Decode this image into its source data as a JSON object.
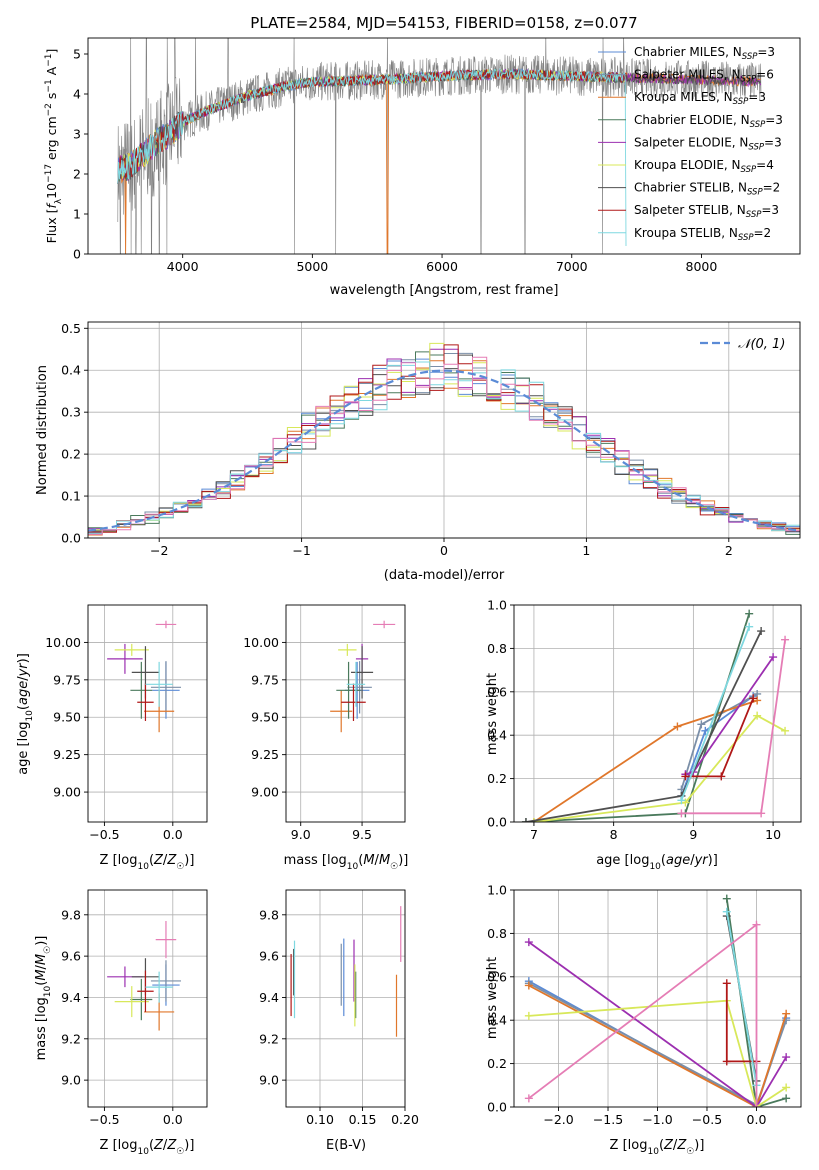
{
  "figure": {
    "title": "PLATE=2584, MJD=54153, FIBERID=0158, z=0.077"
  },
  "colors": {
    "chabrier_miles": "#5b8bd6",
    "salpeter_miles": "#7b8fa8",
    "kroupa_miles": "#e0772b",
    "chabrier_elodie": "#4a7a5c",
    "salpeter_elodie": "#9c2fb0",
    "kroupa_elodie": "#d8e85a",
    "chabrier_stelib": "#505050",
    "salpeter_stelib": "#b01818",
    "kroupa_stelib": "#7fd8e0",
    "data": "#808080",
    "gaussian": "#5b8bd6",
    "pink": "#e57db5"
  },
  "chart_data": [
    {
      "id": "spectrum",
      "type": "line",
      "title": "PLATE=2584, MJD=54153, FIBERID=0158, z=0.077",
      "xlabel": "wavelength [Angstrom, rest frame]",
      "ylabel": "Flux [f_λ10^-17 erg cm^-2 s^-1 A^-1]",
      "xlim": [
        3270,
        8760
      ],
      "ylim": [
        0,
        5.4
      ],
      "xticks": [
        4000,
        5000,
        6000,
        7000,
        8000
      ],
      "yticks": [
        0,
        1,
        2,
        3,
        4,
        5
      ],
      "grid": false,
      "legend_position": "right",
      "legend": [
        {
          "name": "Chabrier MILES, N",
          "sub": "SSP",
          "eq": "=3",
          "color_key": "chabrier_miles"
        },
        {
          "name": "Salpeter MILES, N",
          "sub": "SSP",
          "eq": "=6",
          "color_key": "salpeter_miles"
        },
        {
          "name": "Kroupa MILES, N",
          "sub": "SSP",
          "eq": "=3",
          "color_key": "kroupa_miles"
        },
        {
          "name": "Chabrier ELODIE, N",
          "sub": "SSP",
          "eq": "=3",
          "color_key": "chabrier_elodie"
        },
        {
          "name": "Salpeter ELODIE, N",
          "sub": "SSP",
          "eq": "=3",
          "color_key": "salpeter_elodie"
        },
        {
          "name": "Kroupa ELODIE, N",
          "sub": "SSP",
          "eq": "=4",
          "color_key": "kroupa_elodie"
        },
        {
          "name": "Chabrier STELIB, N",
          "sub": "SSP",
          "eq": "=2",
          "color_key": "chabrier_stelib"
        },
        {
          "name": "Salpeter STELIB, N",
          "sub": "SSP",
          "eq": "=3",
          "color_key": "salpeter_stelib"
        },
        {
          "name": "Kroupa STELIB, N",
          "sub": "SSP",
          "eq": "=2",
          "color_key": "kroupa_stelib"
        }
      ],
      "continuum": [
        [
          3500,
          2.1
        ],
        [
          3600,
          2.2
        ],
        [
          3700,
          2.5
        ],
        [
          3800,
          2.8
        ],
        [
          3900,
          3.0
        ],
        [
          4000,
          3.3
        ],
        [
          4200,
          3.6
        ],
        [
          4500,
          3.95
        ],
        [
          4800,
          4.2
        ],
        [
          5000,
          4.3
        ],
        [
          5500,
          4.35
        ],
        [
          6000,
          4.45
        ],
        [
          6500,
          4.5
        ],
        [
          7000,
          4.45
        ],
        [
          7500,
          4.4
        ],
        [
          8000,
          4.35
        ],
        [
          8500,
          4.3
        ]
      ],
      "data_spikes": [
        3520,
        3560,
        3600,
        3640,
        3680,
        3720,
        3760,
        3820,
        3880,
        3940,
        4100,
        4350,
        4860,
        5180,
        5580,
        6300,
        6640,
        6800,
        7240,
        7400
      ]
    },
    {
      "id": "residuals",
      "type": "line",
      "xlabel": "(data-model)/error",
      "ylabel": "Normed distribution",
      "xlim": [
        -2.5,
        2.5
      ],
      "ylim": [
        0,
        0.515
      ],
      "xticks": [
        -2,
        -1,
        0,
        1,
        2
      ],
      "yticks": [
        0.0,
        0.1,
        0.2,
        0.3,
        0.4,
        0.5
      ],
      "grid": true,
      "legend_position": "top-right",
      "gaussian_label": "𝒩(0, 1)",
      "bin_width": 0.1
    },
    {
      "id": "age_vs_z",
      "type": "scatter",
      "xlabel": "Z [log10(Z/Z☉)]",
      "ylabel": "age  [log10(age/yr)]",
      "xlim": [
        -0.62,
        0.25
      ],
      "ylim": [
        8.8,
        10.25
      ],
      "xticks": [
        -0.5,
        0.0
      ],
      "yticks": [
        9.0,
        9.25,
        9.5,
        9.75,
        10.0
      ],
      "grid": true
    },
    {
      "id": "age_vs_mass",
      "type": "scatter",
      "xlabel": "mass [log10(M/M☉)]",
      "ylabel": "",
      "xlim": [
        8.88,
        9.85
      ],
      "ylim": [
        8.8,
        10.25
      ],
      "xticks": [
        9.0,
        9.5
      ],
      "yticks": [
        9.0,
        9.25,
        9.5,
        9.75,
        10.0
      ],
      "grid": true
    },
    {
      "id": "weight_vs_age",
      "type": "line",
      "xlabel": "age  [log10(age/yr)]",
      "ylabel": "mass weight",
      "xlim": [
        6.75,
        10.35
      ],
      "ylim": [
        0,
        1.0
      ],
      "xticks": [
        7,
        8,
        9,
        10
      ],
      "yticks": [
        0.0,
        0.2,
        0.4,
        0.6,
        0.8,
        1.0
      ],
      "grid": true
    },
    {
      "id": "mass_vs_z",
      "type": "scatter",
      "xlabel": "Z [log10(Z/Z☉)]",
      "ylabel": "mass [log10(M/M☉)]",
      "xlim": [
        -0.62,
        0.25
      ],
      "ylim": [
        8.87,
        9.92
      ],
      "xticks": [
        -0.5,
        0.0
      ],
      "yticks": [
        9.0,
        9.2,
        9.4,
        9.6,
        9.8
      ],
      "grid": true
    },
    {
      "id": "mass_vs_ebv",
      "type": "scatter",
      "xlabel": "E(B-V)",
      "ylabel": "",
      "xlim": [
        0.06,
        0.2
      ],
      "ylim": [
        8.87,
        9.92
      ],
      "xticks": [
        0.1,
        0.15,
        0.2
      ],
      "yticks": [
        9.0,
        9.2,
        9.4,
        9.6,
        9.8
      ],
      "grid": true
    },
    {
      "id": "weight_vs_z",
      "type": "line",
      "xlabel": "Z [log10(Z/Z☉)]",
      "ylabel": "mass weight",
      "xlim": [
        -2.45,
        0.45
      ],
      "ylim": [
        0,
        1.0
      ],
      "xticks": [
        -2.0,
        -1.5,
        -1.0,
        -0.5,
        0.0
      ],
      "yticks": [
        0.0,
        0.2,
        0.4,
        0.6,
        0.8,
        1.0
      ],
      "grid": true
    }
  ],
  "models": [
    {
      "key": "chabrier_miles",
      "z": -0.05,
      "z_err": 0.2,
      "age": 9.68,
      "age_err": 0.38,
      "mass": 9.46,
      "mass_err": 0.2,
      "ebv": 0.128,
      "ebv_err": 0.25,
      "age_w": [
        [
          8.85,
          0.12
        ],
        [
          9.15,
          0.42
        ],
        [
          9.75,
          0.58
        ]
      ],
      "z_w": [
        [
          -2.3,
          0.58
        ],
        [
          0.0,
          0.0
        ],
        [
          0.3,
          0.41
        ]
      ]
    },
    {
      "key": "salpeter_miles",
      "z": -0.05,
      "z_err": 0.22,
      "age": 9.7,
      "age_err": 0.35,
      "mass": 9.48,
      "mass_err": 0.2,
      "ebv": 0.125,
      "ebv_err": 0.2,
      "age_w": [
        [
          8.85,
          0.15
        ],
        [
          9.1,
          0.45
        ],
        [
          9.8,
          0.59
        ]
      ],
      "z_w": [
        [
          -2.3,
          0.57
        ],
        [
          0.0,
          0.01
        ],
        [
          0.3,
          0.4
        ]
      ]
    },
    {
      "key": "kroupa_miles",
      "z": -0.1,
      "z_err": 0.22,
      "age": 9.54,
      "age_err": 0.28,
      "mass": 9.33,
      "mass_err": 0.18,
      "ebv": 0.19,
      "ebv_err": 0.2,
      "age_w": [
        [
          7.0,
          0.0
        ],
        [
          8.8,
          0.44
        ],
        [
          9.8,
          0.56
        ]
      ],
      "z_w": [
        [
          -2.3,
          0.56
        ],
        [
          0.0,
          0.0
        ],
        [
          0.3,
          0.43
        ]
      ]
    },
    {
      "key": "chabrier_elodie",
      "z": -0.23,
      "z_err": 0.16,
      "age": 9.68,
      "age_err": 0.38,
      "mass": 9.39,
      "mass_err": 0.2,
      "ebv": 0.142,
      "ebv_err": 0.15,
      "age_w": [
        [
          6.9,
          0.0
        ],
        [
          8.9,
          0.04
        ],
        [
          9.7,
          0.96
        ]
      ],
      "z_w": [
        [
          -0.3,
          0.96
        ],
        [
          0.0,
          0.0
        ],
        [
          0.3,
          0.04
        ]
      ]
    },
    {
      "key": "salpeter_elodie",
      "z": -0.35,
      "z_err": 0.26,
      "age": 9.89,
      "age_err": 0.2,
      "mass": 9.5,
      "mass_err": 0.1,
      "ebv": 0.14,
      "ebv_err": 0.2,
      "age_w": [
        [
          8.9,
          0.22
        ],
        [
          9.0,
          0.23
        ],
        [
          10.0,
          0.76
        ]
      ],
      "z_w": [
        [
          -2.3,
          0.76
        ],
        [
          0.0,
          0.0
        ],
        [
          0.3,
          0.23
        ]
      ]
    },
    {
      "key": "kroupa_elodie",
      "z": -0.3,
      "z_err": 0.25,
      "age": 9.95,
      "age_err": 0.08,
      "mass": 9.38,
      "mass_err": 0.15,
      "ebv": 0.141,
      "ebv_err": 0.2,
      "age_w": [
        [
          7.0,
          0.0
        ],
        [
          8.9,
          0.09
        ],
        [
          9.8,
          0.49
        ],
        [
          10.15,
          0.42
        ]
      ],
      "z_w": [
        [
          -2.3,
          0.42
        ],
        [
          -0.3,
          0.49
        ],
        [
          0.0,
          0.0
        ],
        [
          0.3,
          0.09
        ]
      ]
    },
    {
      "key": "chabrier_stelib",
      "z": -0.2,
      "z_err": 0.2,
      "age": 9.8,
      "age_err": 0.35,
      "mass": 9.5,
      "mass_err": 0.18,
      "ebv": 0.069,
      "ebv_err": 0.15,
      "age_w": [
        [
          6.9,
          0.0
        ],
        [
          8.85,
          0.12
        ],
        [
          9.85,
          0.88
        ]
      ],
      "z_w": [
        [
          -0.3,
          0.88
        ],
        [
          0.0,
          0.12
        ]
      ]
    },
    {
      "key": "salpeter_stelib",
      "z": -0.2,
      "z_err": 0.12,
      "age": 9.6,
      "age_err": 0.25,
      "mass": 9.43,
      "mass_err": 0.2,
      "ebv": 0.066,
      "ebv_err": 0.2,
      "age_w": [
        [
          8.9,
          0.21
        ],
        [
          9.35,
          0.21
        ],
        [
          9.75,
          0.57
        ]
      ],
      "z_w": [
        [
          -0.3,
          0.57
        ],
        [
          -0.3,
          0.21
        ],
        [
          0.0,
          0.21
        ]
      ]
    },
    {
      "key": "kroupa_stelib",
      "z": -0.1,
      "z_err": 0.2,
      "age": 9.72,
      "age_err": 0.3,
      "mass": 9.45,
      "mass_err": 0.15,
      "ebv": 0.07,
      "ebv_err": 0.25,
      "age_w": [
        [
          8.85,
          0.1
        ],
        [
          9.7,
          0.9
        ]
      ],
      "z_w": [
        [
          -0.3,
          0.9
        ],
        [
          0.0,
          0.1
        ]
      ]
    },
    {
      "key": "pink",
      "z": -0.05,
      "z_err": 0.15,
      "age": 10.12,
      "age_err": 0.05,
      "mass": 9.68,
      "mass_err": 0.18,
      "ebv": 0.195,
      "ebv_err": 0.18,
      "age_w": [
        [
          8.85,
          0.04
        ],
        [
          9.85,
          0.04
        ],
        [
          10.15,
          0.84
        ]
      ],
      "z_w": [
        [
          -2.3,
          0.04
        ],
        [
          0.0,
          0.84
        ],
        [
          0.0,
          0.0
        ]
      ]
    }
  ]
}
